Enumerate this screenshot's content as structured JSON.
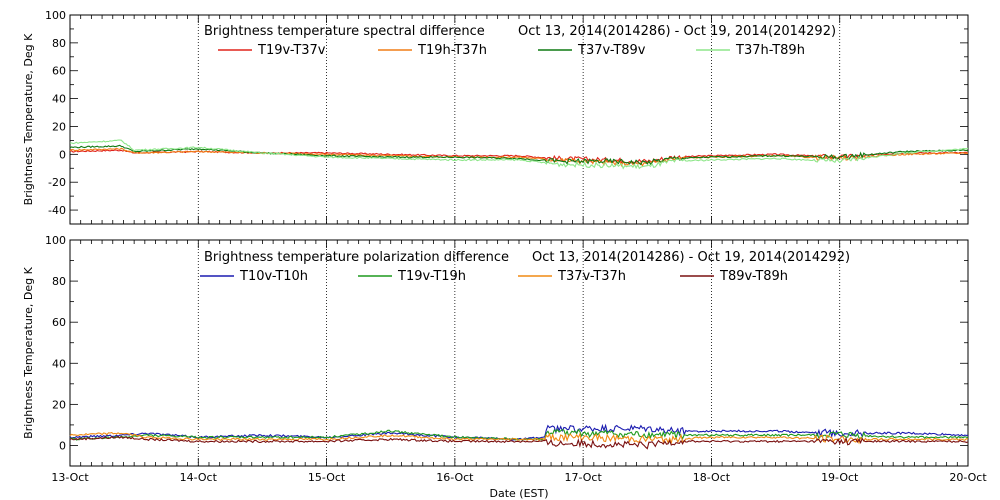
{
  "chart_data": [
    {
      "type": "line",
      "title": "Brightness temperature spectral difference",
      "date_range": "Oct 13, 2014(2014286) - Oct 19, 2014(2014292)",
      "ylabel": "Brightness Temperature, Deg K",
      "ylim": [
        -50,
        100
      ],
      "yticks": [
        -40,
        -20,
        0,
        20,
        40,
        60,
        80,
        100
      ],
      "ytick_labels": [
        "-40",
        "-20",
        "0",
        "20",
        "40",
        "60",
        "80",
        "100"
      ],
      "xlim": [
        0,
        7
      ],
      "x_gridlines": [
        1,
        2,
        3,
        4,
        5,
        6
      ],
      "series": [
        {
          "name": "T19v-T37v",
          "color": "#e0241c",
          "x": [
            0,
            0.4,
            0.5,
            1.0,
            1.5,
            2.0,
            2.5,
            3.0,
            3.5,
            3.8,
            4.2,
            4.5,
            4.7,
            5.0,
            5.5,
            6.0,
            6.5,
            7.0
          ],
          "y": [
            2,
            3,
            1,
            2,
            1,
            1,
            0,
            -1,
            -1,
            -3,
            -4,
            -5,
            -2,
            -1,
            0,
            -2,
            1,
            1
          ]
        },
        {
          "name": "T19h-T37h",
          "color": "#f07d16",
          "x": [
            0,
            0.4,
            0.5,
            1.0,
            1.5,
            2.0,
            2.5,
            3.0,
            3.5,
            3.8,
            4.2,
            4.5,
            4.7,
            5.0,
            5.5,
            6.0,
            6.5,
            7.0
          ],
          "y": [
            3,
            4,
            1,
            2,
            1,
            0,
            -1,
            -2,
            -2,
            -4,
            -6,
            -7,
            -3,
            -2,
            -1,
            -3,
            0,
            1
          ]
        },
        {
          "name": "T37v-T89v",
          "color": "#0e7a12",
          "x": [
            0,
            0.4,
            0.5,
            1.0,
            1.5,
            2.0,
            2.5,
            3.0,
            3.5,
            3.8,
            4.2,
            4.5,
            4.7,
            5.0,
            5.5,
            6.0,
            6.5,
            7.0
          ],
          "y": [
            5,
            6,
            2,
            4,
            1,
            -1,
            -2,
            -2,
            -3,
            -5,
            -5,
            -6,
            -3,
            -2,
            -1,
            -2,
            2,
            3
          ]
        },
        {
          "name": "T37h-T89h",
          "color": "#8ee68a",
          "x": [
            0,
            0.4,
            0.5,
            1.0,
            1.5,
            2.0,
            2.5,
            3.0,
            3.5,
            3.8,
            4.2,
            4.5,
            4.7,
            5.0,
            5.5,
            6.0,
            6.5,
            7.0
          ],
          "y": [
            8,
            10,
            3,
            5,
            1,
            -2,
            -3,
            -4,
            -4,
            -7,
            -8,
            -9,
            -5,
            -4,
            -3,
            -5,
            1,
            4
          ]
        }
      ]
    },
    {
      "type": "line",
      "title": "Brightness temperature polarization difference",
      "date_range": "Oct 13, 2014(2014286) - Oct 19, 2014(2014292)",
      "ylabel": "Brightness Temperature, Deg K",
      "xlabel": "Date (EST)",
      "ylim": [
        -10,
        100
      ],
      "yticks": [
        0,
        20,
        40,
        60,
        80,
        100
      ],
      "ytick_labels": [
        "0",
        "20",
        "40",
        "60",
        "80",
        "100"
      ],
      "xlim": [
        0,
        7
      ],
      "xtick_labels": [
        "13-Oct",
        "14-Oct",
        "15-Oct",
        "16-Oct",
        "17-Oct",
        "18-Oct",
        "19-Oct",
        "20-Oct"
      ],
      "x_gridlines": [
        1,
        2,
        3,
        4,
        5,
        6
      ],
      "series": [
        {
          "name": "T10v-T10h",
          "color": "#1b1bb0",
          "x": [
            0,
            0.4,
            0.6,
            1.0,
            1.5,
            2.0,
            2.5,
            3.0,
            3.5,
            3.7,
            3.72,
            4.0,
            4.5,
            4.7,
            5.0,
            5.5,
            6.0,
            6.5,
            7.0
          ],
          "y": [
            4,
            5,
            6,
            4,
            5,
            4,
            6,
            4,
            3,
            4,
            8,
            8,
            8,
            7,
            7,
            7,
            6,
            6,
            5
          ]
        },
        {
          "name": "T19v-T19h",
          "color": "#1e9a1e",
          "x": [
            0,
            0.4,
            0.6,
            1.0,
            1.5,
            2.0,
            2.5,
            3.0,
            3.5,
            3.7,
            3.72,
            4.0,
            4.5,
            4.7,
            5.0,
            5.5,
            6.0,
            6.5,
            7.0
          ],
          "y": [
            3,
            4,
            5,
            4,
            4,
            4,
            7,
            4,
            3,
            3,
            6,
            6,
            5,
            5,
            5,
            5,
            5,
            4,
            4
          ]
        },
        {
          "name": "T37v-T37h",
          "color": "#f08a14",
          "x": [
            0,
            0.4,
            0.6,
            1.0,
            1.5,
            2.0,
            2.5,
            3.0,
            3.5,
            3.7,
            3.72,
            4.0,
            4.5,
            4.7,
            5.0,
            5.5,
            6.0,
            6.5,
            7.0
          ],
          "y": [
            5,
            6,
            4,
            3,
            3,
            3,
            5,
            3,
            3,
            3,
            4,
            4,
            3,
            3,
            4,
            4,
            3,
            3,
            3
          ]
        },
        {
          "name": "T89v-T89h",
          "color": "#7a1010",
          "x": [
            0,
            0.4,
            0.6,
            1.0,
            1.5,
            2.0,
            2.5,
            3.0,
            3.5,
            3.7,
            3.72,
            4.0,
            4.5,
            4.7,
            5.0,
            5.5,
            6.0,
            6.5,
            7.0
          ],
          "y": [
            3,
            4,
            3,
            2,
            2,
            2,
            3,
            2,
            2,
            2,
            1,
            1,
            0,
            2,
            2,
            2,
            2,
            2,
            2
          ]
        }
      ]
    }
  ]
}
